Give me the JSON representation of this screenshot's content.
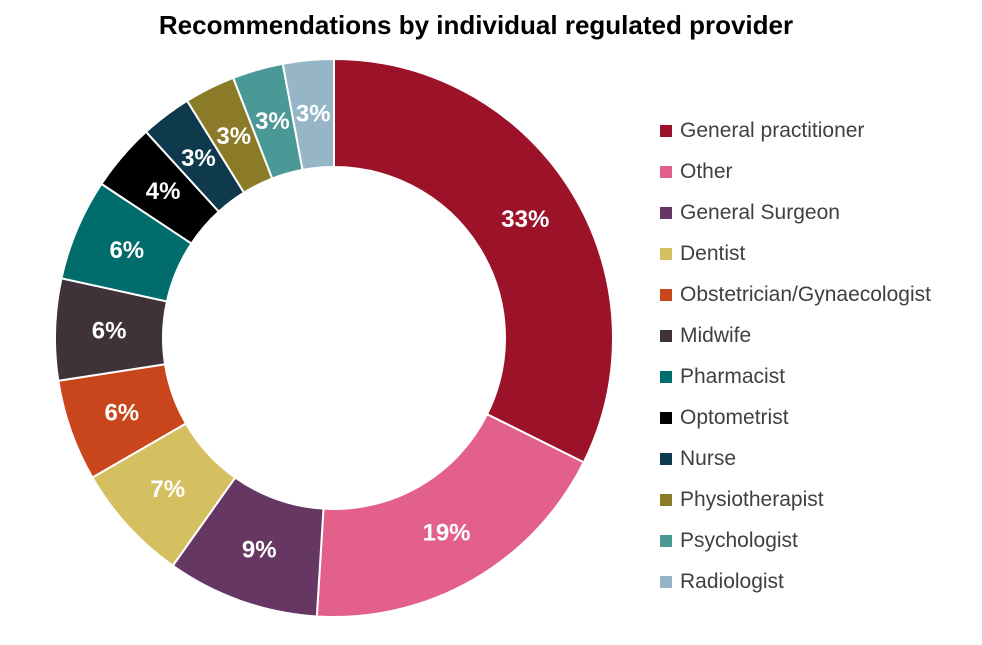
{
  "chart_data": {
    "type": "pie",
    "subtype": "donut",
    "title": "Recommendations by individual regulated provider",
    "categories": [
      "General practitioner",
      "Other",
      "General Surgeon",
      "Dentist",
      "Obstetrician/Gynaecologist",
      "Midwife",
      "Pharmacist",
      "Optometrist",
      "Nurse",
      "Physiotherapist",
      "Psychologist",
      "Radiologist"
    ],
    "values": [
      33,
      19,
      9,
      7,
      6,
      6,
      6,
      4,
      3,
      3,
      3,
      3
    ],
    "labels": [
      "33%",
      "19%",
      "9%",
      "7%",
      "6%",
      "6%",
      "6%",
      "4%",
      "3%",
      "3%",
      "3%",
      "3%"
    ],
    "unit": "%",
    "colors": [
      "#9b1229",
      "#e3608a",
      "#663762",
      "#d4c060",
      "#c9461d",
      "#3f3238",
      "#006c6c",
      "#000000",
      "#0f3a4e",
      "#8b7a27",
      "#4a9996",
      "#96b6c8"
    ],
    "legend_position": "right",
    "start_angle": "12 o'clock",
    "direction": "clockwise"
  }
}
